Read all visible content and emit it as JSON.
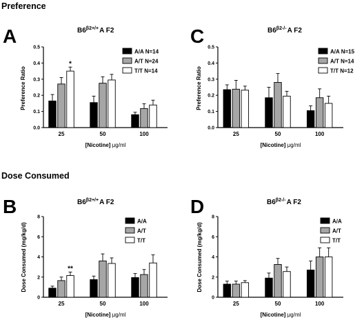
{
  "sections": {
    "top": "Preference",
    "bottom": "Dose Consumed"
  },
  "colors": {
    "A/A": "#000000",
    "A/T": "#a6a6a6",
    "T/T": "#ffffff"
  },
  "chart_data": [
    {
      "id": "A",
      "panel_letter": "A",
      "type": "bar",
      "title_base": "B6",
      "title_sup": "β2+/+",
      "title_tail": "A F2",
      "ylabel": "Preference Ratio",
      "xlabel_part1": "[Nicotine]",
      "xlabel_part2": "μg/ml",
      "ylim": [
        0,
        0.5
      ],
      "yticks": [
        "0.0",
        "0.1",
        "0.2",
        "0.3",
        "0.4",
        "0.5"
      ],
      "categories": [
        "25",
        "50",
        "100"
      ],
      "series": [
        {
          "name": "A/A N=14",
          "values": [
            0.165,
            0.155,
            0.08
          ],
          "errors": [
            0.04,
            0.04,
            0.015
          ]
        },
        {
          "name": "A/T N=24",
          "values": [
            0.27,
            0.275,
            0.118
          ],
          "errors": [
            0.04,
            0.04,
            0.03
          ]
        },
        {
          "name": "T/T N=14",
          "values": [
            0.35,
            0.295,
            0.14
          ],
          "errors": [
            0.025,
            0.035,
            0.03
          ]
        }
      ],
      "annotations": [
        {
          "text": "*",
          "category": 0,
          "series": 2
        }
      ],
      "legend": "top-right"
    },
    {
      "id": "C",
      "panel_letter": "C",
      "type": "bar",
      "title_base": "B6",
      "title_sup": "β2-/-",
      "title_tail": "A F2",
      "ylabel": "Preference Ratio",
      "xlabel_part1": "[Nicotine]",
      "xlabel_part2": "μg/ml",
      "ylim": [
        0,
        0.5
      ],
      "yticks": [
        "0.0",
        "0.1",
        "0.2",
        "0.3",
        "0.4",
        "0.5"
      ],
      "categories": [
        "25",
        "50",
        "100"
      ],
      "series": [
        {
          "name": "A/A N=15",
          "values": [
            0.235,
            0.185,
            0.105
          ],
          "errors": [
            0.03,
            0.065,
            0.03
          ]
        },
        {
          "name": "A/T N=14",
          "values": [
            0.238,
            0.28,
            0.185
          ],
          "errors": [
            0.055,
            0.055,
            0.055
          ]
        },
        {
          "name": "T/T N=12",
          "values": [
            0.232,
            0.195,
            0.15
          ],
          "errors": [
            0.025,
            0.03,
            0.045
          ]
        }
      ],
      "annotations": [],
      "legend": "top-right"
    },
    {
      "id": "B",
      "panel_letter": "B",
      "type": "bar",
      "title_base": "B6",
      "title_sup": "β2+/+",
      "title_tail": "A F2",
      "ylabel": "Dose Consumed (mg/kg/d)",
      "xlabel_part1": "[Nicotine]",
      "xlabel_part2": "μg/ml",
      "ylim": [
        0,
        8
      ],
      "yticks": [
        "0",
        "2",
        "4",
        "6",
        "8"
      ],
      "categories": [
        "25",
        "50",
        "100"
      ],
      "series": [
        {
          "name": "A/A",
          "values": [
            0.9,
            1.75,
            1.95
          ],
          "errors": [
            0.2,
            0.35,
            0.4
          ]
        },
        {
          "name": "A/T",
          "values": [
            1.65,
            3.6,
            2.25
          ],
          "errors": [
            0.35,
            0.7,
            0.5
          ]
        },
        {
          "name": "T/T",
          "values": [
            2.15,
            3.35,
            3.4
          ],
          "errors": [
            0.35,
            0.55,
            0.8
          ]
        }
      ],
      "annotations": [
        {
          "text": "**",
          "category": 0,
          "series": 2
        }
      ],
      "legend": "top-right"
    },
    {
      "id": "D",
      "panel_letter": "D",
      "type": "bar",
      "title_base": "B6",
      "title_sup": "β2-/-",
      "title_tail": "A F2",
      "ylabel": "Dose Consumed (mg/kg/d)",
      "xlabel_part1": "[Nicotine]",
      "xlabel_part2": "μg/ml",
      "ylim": [
        0,
        8
      ],
      "yticks": [
        "0",
        "2",
        "4",
        "6",
        "8"
      ],
      "categories": [
        "25",
        "50",
        "100"
      ],
      "series": [
        {
          "name": "A/A",
          "values": [
            1.3,
            1.9,
            2.7
          ],
          "errors": [
            0.3,
            0.5,
            0.9
          ]
        },
        {
          "name": "A/T",
          "values": [
            1.3,
            3.25,
            4.0
          ],
          "errors": [
            0.3,
            0.6,
            0.9
          ]
        },
        {
          "name": "T/T",
          "values": [
            1.45,
            2.55,
            4.0
          ],
          "errors": [
            0.2,
            0.45,
            0.9
          ]
        }
      ],
      "annotations": [],
      "legend": "top-right"
    }
  ]
}
